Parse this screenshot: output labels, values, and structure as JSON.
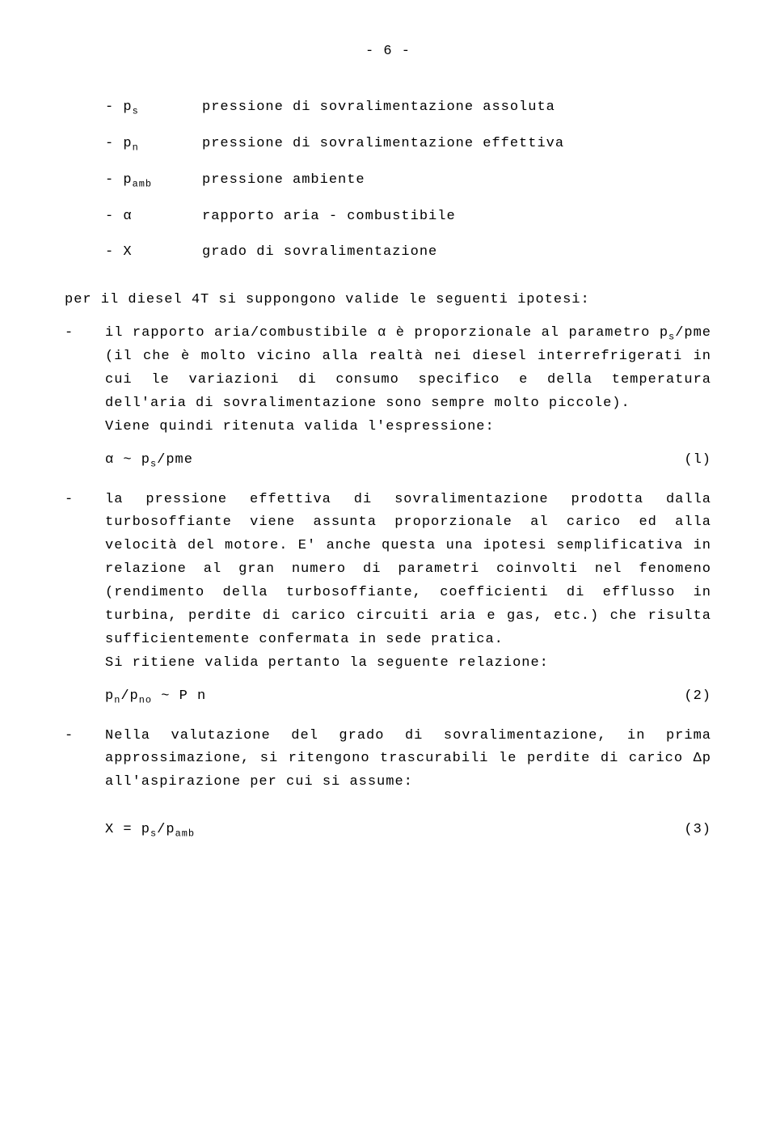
{
  "page_number": "- 6 -",
  "defs": {
    "ps": {
      "sym_pre": "- p",
      "sym_sub": "s",
      "desc": "pressione di sovralimentazione assoluta"
    },
    "pn": {
      "sym_pre": "- p",
      "sym_sub": "n",
      "desc": "pressione di sovralimentazione effettiva"
    },
    "pamb": {
      "sym_pre": "- p",
      "sym_sub": "amb",
      "desc": "pressione ambiente"
    },
    "alpha": {
      "sym": "- α",
      "desc": "rapporto aria - combustibile"
    },
    "x": {
      "sym": "- X",
      "desc": "grado di sovralimentazione"
    }
  },
  "intro": "per il diesel 4T si suppongono valide le seguenti ipotesi:",
  "item1": {
    "dash": "-",
    "t1": "il rapporto aria/combustibile α è proporzionale al parametro p",
    "t1sub": "s",
    "t2": "/pme (il che è molto vicino alla realtà nei diesel interrefrigerati in cui le variazioni di consumo specifico e della temperatura dell'aria di sovralimentazione sono sempre molto piccole).",
    "valid": "Viene quindi ritenuta valida l'espressione:"
  },
  "eq1": {
    "l1": "α  ~ p",
    "lsub": "s",
    "l2": "/pme",
    "num": "(l)"
  },
  "item2": {
    "dash": "-",
    "text": "la pressione effettiva di sovralimentazione prodotta dalla turbosoffiante viene assunta proporzionale al carico ed alla velocità del motore. E' anche questa una ipotesi semplificativa in relazione al gran numero di parametri coinvolti nel fenomeno (rendimento della turbosoffiante, coefficienti di efflusso in turbina, perdite di carico circuiti aria e gas, etc.) che risulta sufficientemente confermata in sede pratica.",
    "valid": "Si ritiene valida pertanto la seguente relazione:"
  },
  "eq2": {
    "l1": "p",
    "s1": "n",
    "l2": "/p",
    "s2": "no",
    "l3": " ~ P n",
    "num": "(2)"
  },
  "item3": {
    "dash": "-",
    "text": "Nella valutazione del grado di sovralimentazione, in prima approssimazione, si ritengono trascurabili le perdite di carico Δp all'aspirazione per cui si assume:"
  },
  "eq3": {
    "l1": "X = p",
    "s1": "s",
    "l2": "/p",
    "s2": "amb",
    "num": "(3)"
  }
}
